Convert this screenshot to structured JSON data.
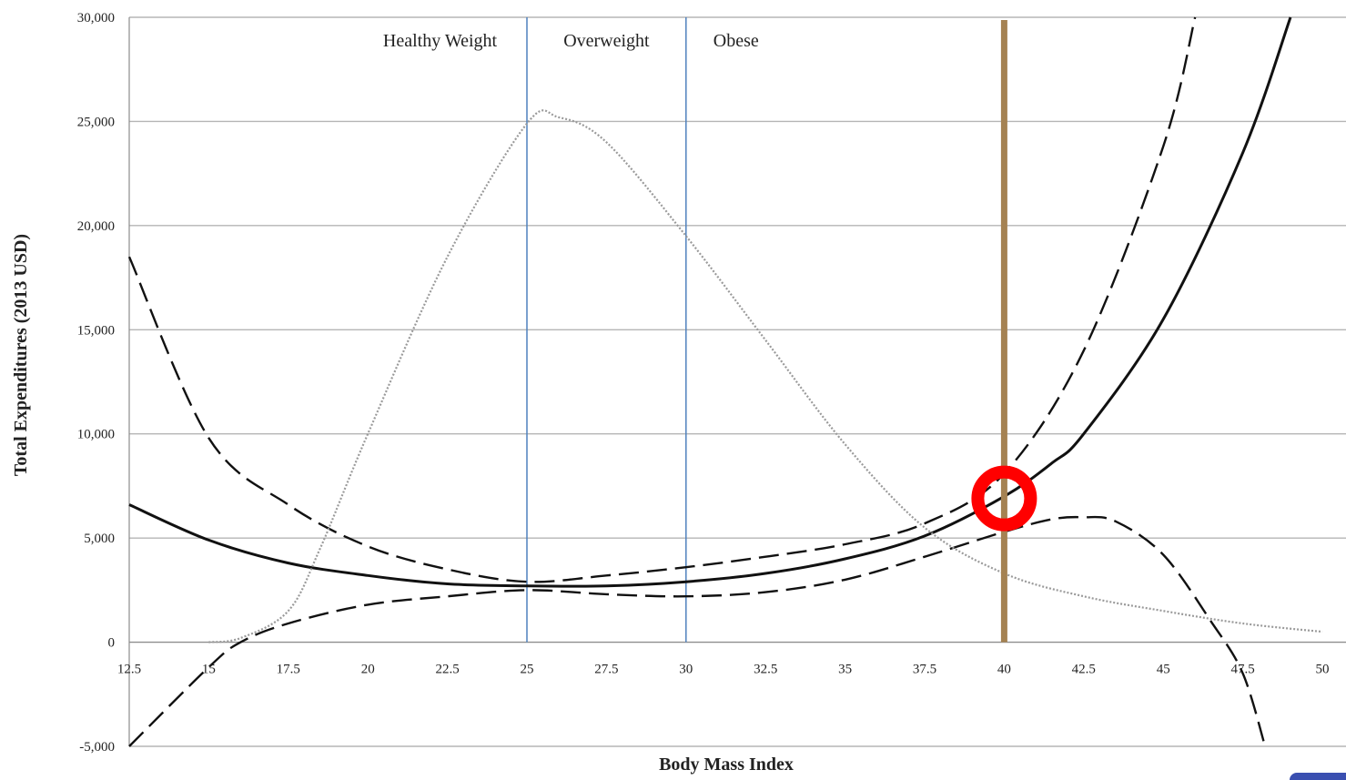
{
  "chart_data": {
    "type": "line",
    "title": "",
    "xlabel": "Body Mass Index",
    "ylabel": "Total Expenditures (2013 USD)",
    "xlim": [
      12.5,
      50
    ],
    "ylim": [
      -5000,
      30000
    ],
    "grid": "horizontal",
    "x_ticks": [
      "12.5",
      "15",
      "17.5",
      "20",
      "22.5",
      "25",
      "27.5",
      "30",
      "32.5",
      "35",
      "37.5",
      "40",
      "42.5",
      "45",
      "47.5",
      "50"
    ],
    "y_ticks": [
      "-5,000",
      "0",
      "5,000",
      "10,000",
      "15,000",
      "20,000",
      "25,000",
      "30,000"
    ],
    "region_labels": [
      "Healthy Weight",
      "Overweight",
      "Obese"
    ],
    "region_boundaries": [
      25,
      30
    ],
    "highlight_x": 40,
    "highlight_marker": {
      "x": 40,
      "y": 6900
    },
    "colors": {
      "boundary": "#4f81bd",
      "highlight": "#a58252",
      "marker": "#ff0000",
      "series": "#111111",
      "density": "#9a9a9a",
      "grid": "#b5b5b5"
    },
    "series": [
      {
        "style": "solid",
        "x": [
          12.5,
          15,
          17.5,
          20,
          22.5,
          25,
          27.5,
          30,
          32.5,
          35,
          37.5,
          40,
          41.5,
          42.5,
          45,
          47.5,
          49
        ],
        "y": [
          6600,
          4900,
          3800,
          3200,
          2800,
          2700,
          2700,
          2900,
          3300,
          4000,
          5100,
          7000,
          8600,
          10000,
          15500,
          23500,
          30000
        ]
      },
      {
        "style": "dashed",
        "x": [
          12.5,
          15,
          17.5,
          20,
          22.5,
          25,
          27.5,
          30,
          32.5,
          35,
          37.5,
          40,
          42.5,
          45,
          46
        ],
        "y": [
          18500,
          9800,
          6600,
          4600,
          3500,
          2900,
          3200,
          3600,
          4100,
          4700,
          5700,
          8100,
          14000,
          23800,
          30000
        ]
      },
      {
        "style": "dashed",
        "x": [
          12.5,
          15,
          16,
          17.5,
          20,
          22.5,
          25,
          27.5,
          30,
          32.5,
          35,
          37.5,
          40,
          41.5,
          42.5,
          43.5,
          45,
          46.5,
          47.5,
          48.2
        ],
        "y": [
          -5000,
          -1200,
          0,
          900,
          1800,
          2200,
          2500,
          2300,
          2200,
          2400,
          3000,
          4100,
          5300,
          5900,
          6000,
          5800,
          4200,
          1000,
          -1500,
          -5000
        ]
      },
      {
        "style": "dotted",
        "x": [
          15,
          16,
          17.5,
          18.5,
          20,
          22.5,
          25,
          26,
          27.5,
          30,
          32.5,
          35,
          37.5,
          40,
          42.5,
          45,
          47.5,
          50
        ],
        "y": [
          0,
          200,
          1500,
          4500,
          10000,
          18500,
          24900,
          25200,
          24000,
          19500,
          14500,
          9500,
          5500,
          3300,
          2200,
          1500,
          900,
          500
        ]
      }
    ]
  }
}
